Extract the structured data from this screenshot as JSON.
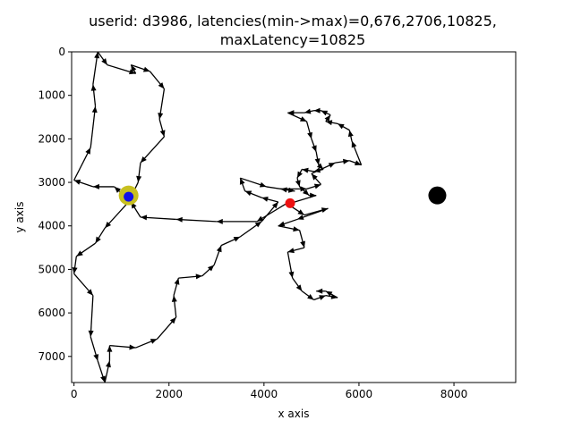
{
  "chart_data": {
    "type": "line",
    "title_lines": [
      "userid: d3986, latencies(min->max)=0,676,2706,10825,",
      "maxLatency=10825"
    ],
    "xlabel": "x axis",
    "ylabel": "y axis",
    "xlim": [
      -50,
      9300
    ],
    "ylim": [
      7600,
      0
    ],
    "y_inverted": true,
    "xticks": [
      0,
      2000,
      4000,
      6000,
      8000
    ],
    "xtick_labels": [
      "0",
      "2000",
      "4000",
      "6000",
      "8000"
    ],
    "yticks": [
      0,
      1000,
      2000,
      3000,
      4000,
      5000,
      6000,
      7000
    ],
    "ytick_labels": [
      "0",
      "1000",
      "2000",
      "3000",
      "4000",
      "5000",
      "6000",
      "7000"
    ],
    "grid": false,
    "path_color": "#000000",
    "path": [
      [
        4550,
        3500
      ],
      [
        4450,
        3500
      ],
      [
        3850,
        3900
      ],
      [
        3000,
        3900
      ],
      [
        2150,
        3850
      ],
      [
        1400,
        3800
      ],
      [
        1200,
        3450
      ],
      [
        850,
        3100
      ],
      [
        400,
        3100
      ],
      [
        0,
        2950
      ],
      [
        350,
        2200
      ],
      [
        450,
        1250
      ],
      [
        400,
        750
      ],
      [
        500,
        0
      ],
      [
        700,
        300
      ],
      [
        1300,
        500
      ],
      [
        1200,
        300
      ],
      [
        1600,
        450
      ],
      [
        1900,
        850
      ],
      [
        1800,
        1550
      ],
      [
        1900,
        1950
      ],
      [
        1400,
        2550
      ],
      [
        1350,
        3000
      ],
      [
        1150,
        3450
      ],
      [
        650,
        4050
      ],
      [
        450,
        4400
      ],
      [
        50,
        4700
      ],
      [
        0,
        5100
      ],
      [
        400,
        5600
      ],
      [
        350,
        6550
      ],
      [
        500,
        7100
      ],
      [
        650,
        7600
      ],
      [
        750,
        7100
      ],
      [
        750,
        6750
      ],
      [
        1300,
        6800
      ],
      [
        1750,
        6600
      ],
      [
        2150,
        6100
      ],
      [
        2100,
        5600
      ],
      [
        2200,
        5200
      ],
      [
        2700,
        5150
      ],
      [
        2950,
        4900
      ],
      [
        3100,
        4450
      ],
      [
        3500,
        4250
      ],
      [
        3950,
        3900
      ],
      [
        4300,
        3450
      ],
      [
        3950,
        3350
      ],
      [
        3600,
        3200
      ],
      [
        3500,
        2900
      ],
      [
        4050,
        3100
      ],
      [
        4650,
        3200
      ],
      [
        4350,
        3150
      ],
      [
        4900,
        3150
      ],
      [
        5200,
        3050
      ],
      [
        5000,
        2800
      ],
      [
        5500,
        2550
      ],
      [
        5800,
        2500
      ],
      [
        6050,
        2600
      ],
      [
        5850,
        2050
      ],
      [
        5800,
        1800
      ],
      [
        5550,
        1650
      ],
      [
        5300,
        1600
      ],
      [
        5400,
        1450
      ],
      [
        5200,
        1350
      ],
      [
        5050,
        1350
      ],
      [
        4850,
        1400
      ],
      [
        4500,
        1400
      ],
      [
        4900,
        1600
      ],
      [
        5000,
        2000
      ],
      [
        5100,
        2300
      ],
      [
        5150,
        2600
      ],
      [
        5250,
        2700
      ],
      [
        5050,
        2750
      ],
      [
        4800,
        2700
      ],
      [
        4700,
        2900
      ],
      [
        4750,
        3100
      ],
      [
        4950,
        3300
      ],
      [
        5100,
        3300
      ],
      [
        4500,
        3500
      ],
      [
        4850,
        3750
      ],
      [
        5350,
        3600
      ],
      [
        4700,
        3850
      ],
      [
        4300,
        4000
      ],
      [
        4750,
        4100
      ],
      [
        4850,
        4500
      ],
      [
        4500,
        4600
      ],
      [
        4600,
        5200
      ],
      [
        4800,
        5500
      ],
      [
        5050,
        5700
      ],
      [
        5300,
        5600
      ],
      [
        5550,
        5650
      ],
      [
        5300,
        5500
      ],
      [
        5100,
        5500
      ]
    ],
    "markers": [
      {
        "name": "yellow-halo",
        "x": 1150,
        "y": 3300,
        "color": "#c8c020",
        "r": 11
      },
      {
        "name": "blue-dot",
        "x": 1150,
        "y": 3330,
        "color": "#1010e8",
        "r": 5.5
      },
      {
        "name": "red-dot",
        "x": 4550,
        "y": 3480,
        "color": "#ee1010",
        "r": 5.5
      },
      {
        "name": "black-dot",
        "x": 7650,
        "y": 3300,
        "color": "#000000",
        "r": 10
      }
    ]
  }
}
